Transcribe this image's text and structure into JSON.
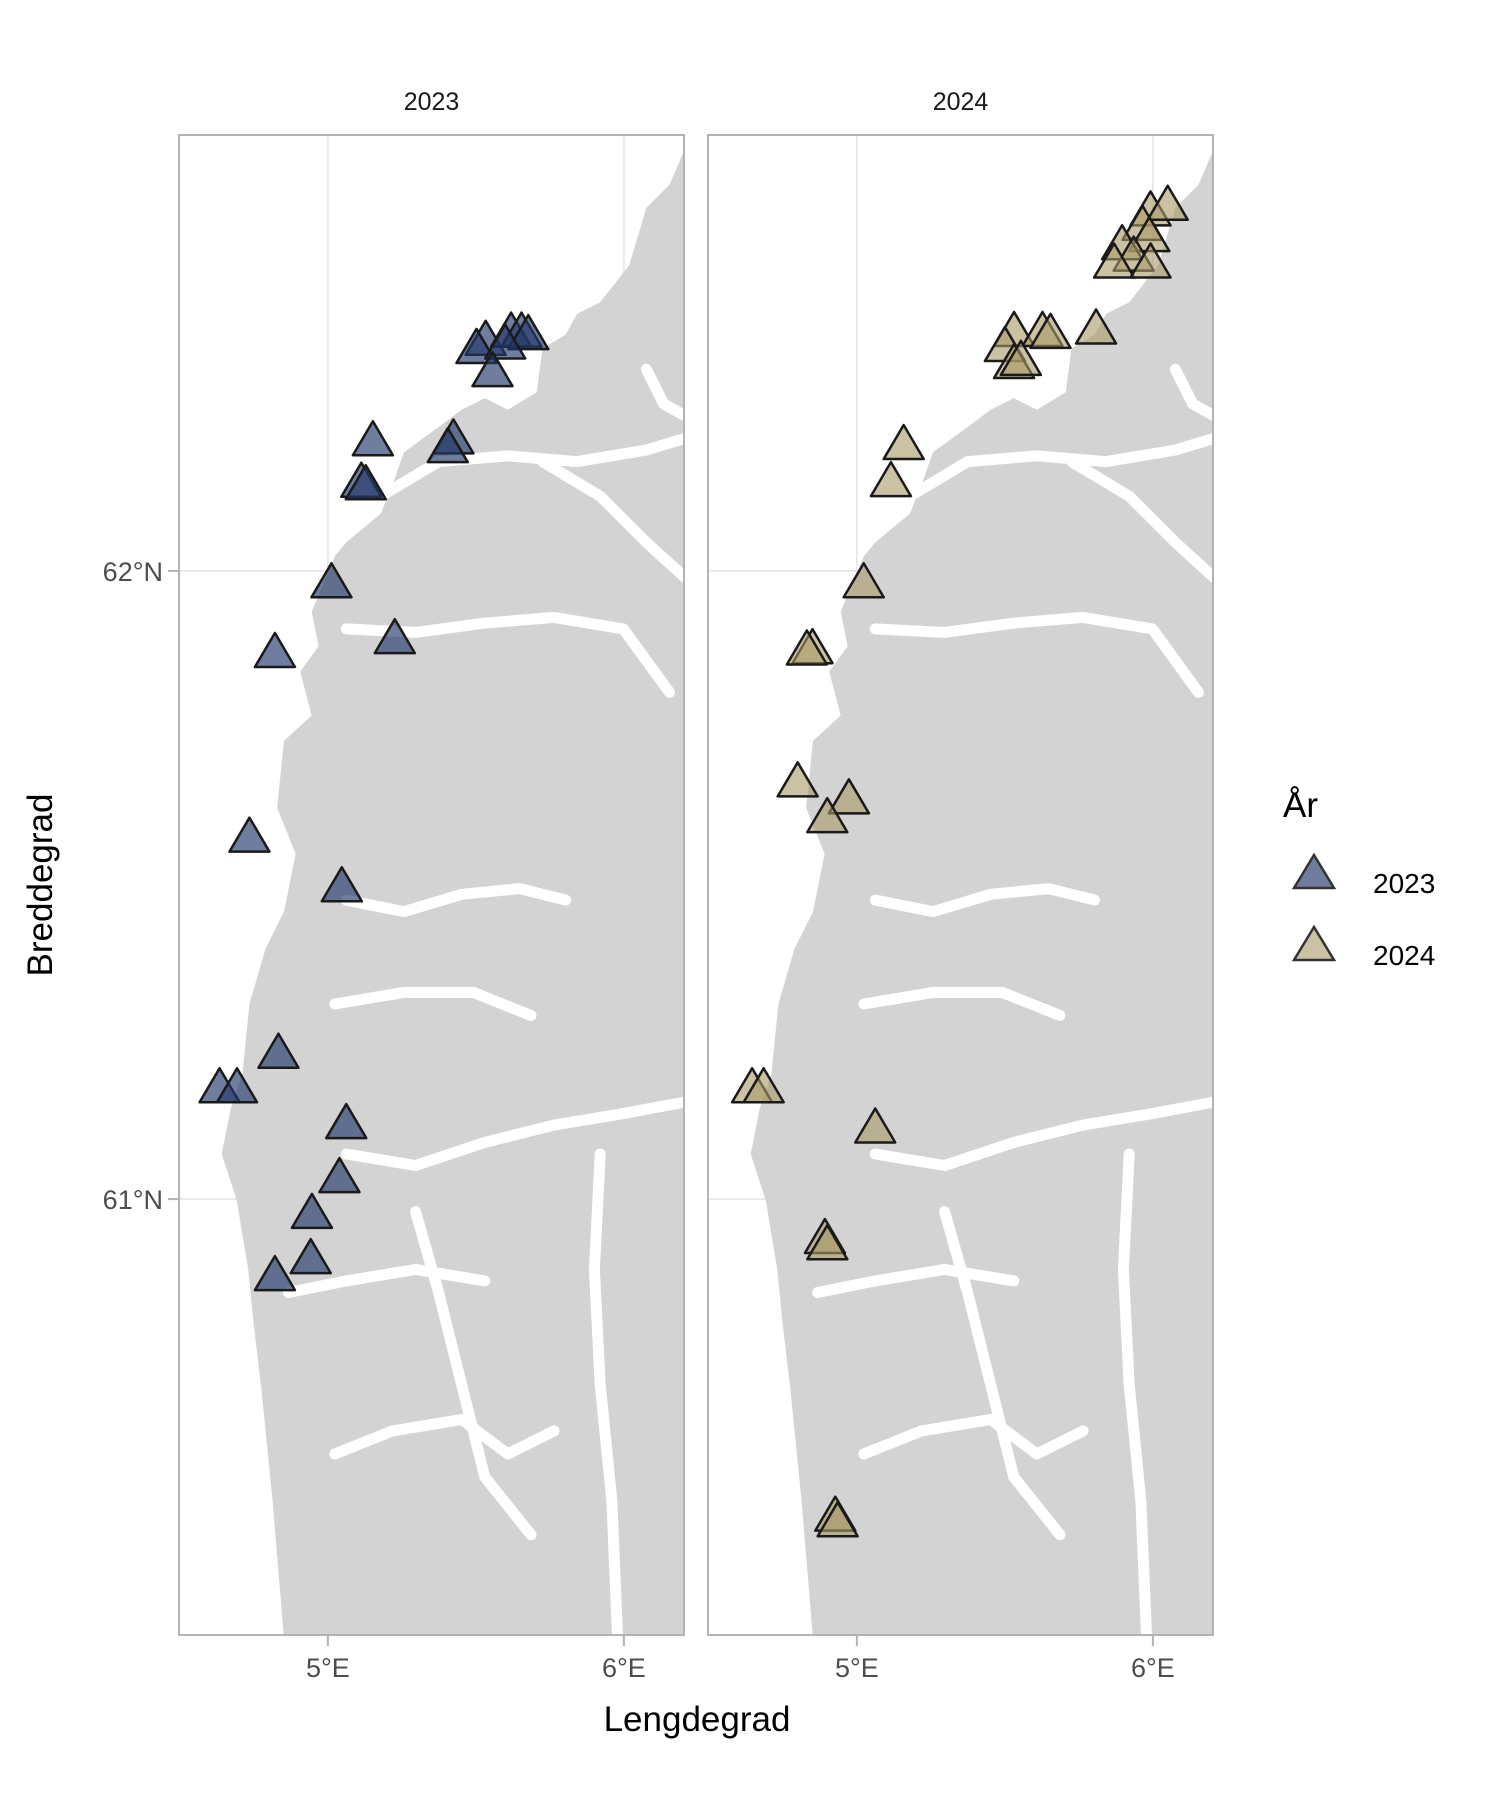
{
  "chart_data": {
    "type": "scatter",
    "xlabel": "Lengdegrad",
    "ylabel": "Breddegrad",
    "xlim": [
      4.5,
      6.2
    ],
    "ylim": [
      60.31,
      62.69
    ],
    "x_ticks": [
      {
        "value": 5,
        "label": "5°E"
      },
      {
        "value": 6,
        "label": "6°E"
      }
    ],
    "y_ticks": [
      {
        "value": 62,
        "label": "62°N"
      },
      {
        "value": 61,
        "label": "61°N"
      }
    ],
    "grid": true,
    "basemap": "coastline of western Norway (land in grey)",
    "marker": "triangle",
    "legend": {
      "title": "År",
      "position": "right",
      "entries": [
        {
          "label": "2023",
          "color": "#22386a"
        },
        {
          "label": "2024",
          "color": "#a99a66"
        }
      ]
    },
    "facets": [
      {
        "label": "2023",
        "color": "#22386a",
        "points": [
          [
            5.533,
            62.368
          ],
          [
            5.619,
            62.381
          ],
          [
            5.654,
            62.381
          ],
          [
            5.677,
            62.377
          ],
          [
            5.502,
            62.355
          ],
          [
            5.599,
            62.362
          ],
          [
            5.556,
            62.318
          ],
          [
            5.152,
            62.208
          ],
          [
            5.424,
            62.211
          ],
          [
            5.405,
            62.197
          ],
          [
            5.113,
            62.142
          ],
          [
            5.128,
            62.138
          ],
          [
            5.012,
            61.982
          ],
          [
            4.821,
            61.871
          ],
          [
            5.226,
            61.893
          ],
          [
            4.735,
            61.577
          ],
          [
            5.047,
            61.498
          ],
          [
            4.833,
            61.233
          ],
          [
            4.634,
            61.178
          ],
          [
            4.693,
            61.178
          ],
          [
            5.062,
            61.121
          ],
          [
            5.039,
            61.035
          ],
          [
            4.946,
            60.978
          ],
          [
            4.942,
            60.906
          ],
          [
            4.821,
            60.879
          ]
        ]
      },
      {
        "label": "2024",
        "color": "#a99a66",
        "points": [
          [
            5.992,
            62.574
          ],
          [
            6.05,
            62.583
          ],
          [
            5.965,
            62.551
          ],
          [
            5.988,
            62.533
          ],
          [
            5.896,
            62.52
          ],
          [
            5.935,
            62.502
          ],
          [
            5.869,
            62.491
          ],
          [
            5.992,
            62.491
          ],
          [
            5.531,
            62.382
          ],
          [
            5.627,
            62.382
          ],
          [
            5.654,
            62.379
          ],
          [
            5.808,
            62.386
          ],
          [
            5.5,
            62.358
          ],
          [
            5.531,
            62.331
          ],
          [
            5.554,
            62.336
          ],
          [
            5.158,
            62.202
          ],
          [
            5.115,
            62.143
          ],
          [
            5.023,
            61.982
          ],
          [
            4.85,
            61.877
          ],
          [
            4.831,
            61.875
          ],
          [
            4.8,
            61.665
          ],
          [
            4.973,
            61.638
          ],
          [
            4.9,
            61.608
          ],
          [
            4.646,
            61.178
          ],
          [
            4.685,
            61.178
          ],
          [
            5.062,
            61.114
          ],
          [
            4.892,
            60.938
          ],
          [
            4.9,
            60.928
          ],
          [
            4.927,
            60.496
          ],
          [
            4.935,
            60.487
          ]
        ]
      }
    ]
  }
}
